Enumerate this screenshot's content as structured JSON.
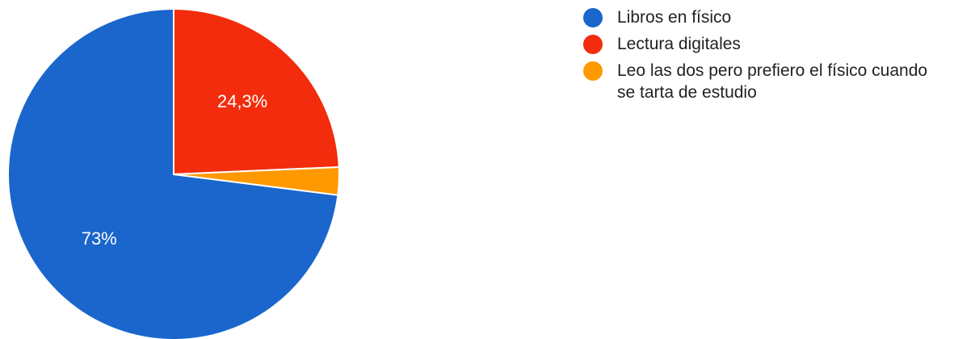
{
  "chart_data": {
    "type": "pie",
    "slices": [
      {
        "name": "Libros en físico",
        "value": 73,
        "label": "73%",
        "color": "#1a66cc"
      },
      {
        "name": "Lectura digitales",
        "value": 24.3,
        "label": "24,3%",
        "color": "#f22c0c"
      },
      {
        "name": "Leo las dos pero prefiero el físico cuando se tarta de estudio",
        "value": 2.7,
        "label": "",
        "color": "#ff9900"
      }
    ],
    "legend_position": "right"
  }
}
